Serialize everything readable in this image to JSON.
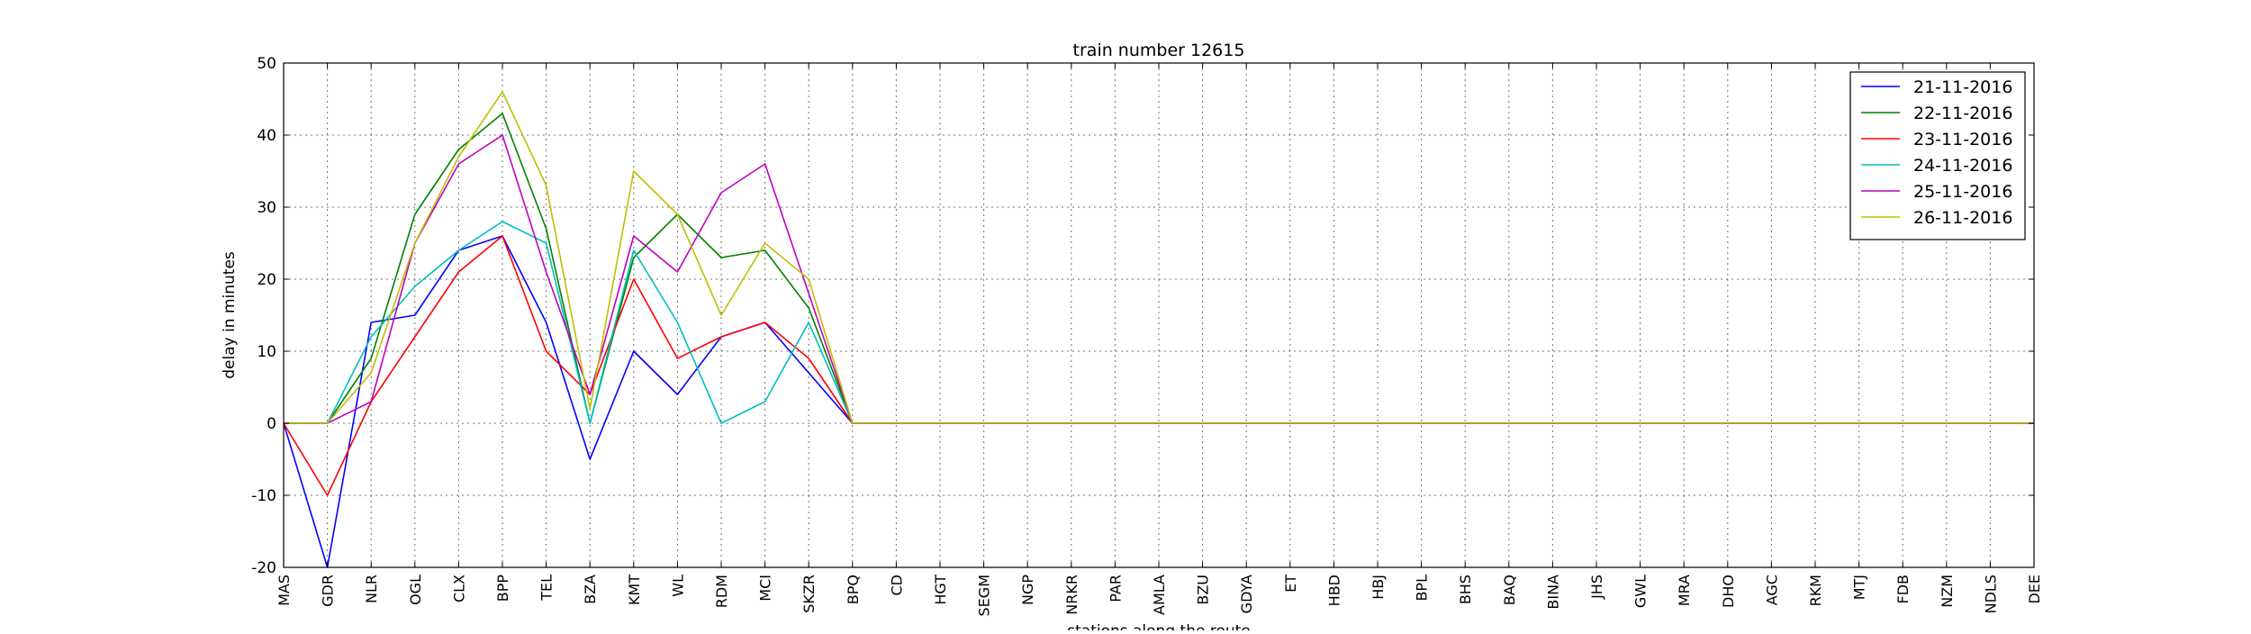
{
  "chart_data": {
    "type": "line",
    "title": "train number 12615",
    "xlabel": "stations along the route",
    "ylabel": "delay in minutes",
    "ylim": [
      -20,
      50
    ],
    "yticks": [
      -20,
      -10,
      0,
      10,
      20,
      30,
      40,
      50
    ],
    "grid": true,
    "legend_position": "top-right",
    "categories": [
      "MAS",
      "GDR",
      "NLR",
      "OGL",
      "CLX",
      "BPP",
      "TEL",
      "BZA",
      "KMT",
      "WL",
      "RDM",
      "MCI",
      "SKZR",
      "BPQ",
      "CD",
      "HGT",
      "SEGM",
      "NGP",
      "NRKR",
      "PAR",
      "AMLA",
      "BZU",
      "GDYA",
      "ET",
      "HBD",
      "HBJ",
      "BPL",
      "BHS",
      "BAQ",
      "BINA",
      "JHS",
      "GWL",
      "MRA",
      "DHO",
      "AGC",
      "RKM",
      "MTJ",
      "FDB",
      "NZM",
      "NDLS",
      "DEE"
    ],
    "series": [
      {
        "name": "21-11-2016",
        "color": "#0000ff",
        "values": [
          0,
          -20,
          14,
          15,
          24,
          26,
          14,
          -5,
          10,
          4,
          12,
          14,
          7,
          0,
          0,
          0,
          0,
          0,
          0,
          0,
          0,
          0,
          0,
          0,
          0,
          0,
          0,
          0,
          0,
          0,
          0,
          0,
          0,
          0,
          0,
          0,
          0,
          0,
          0,
          0,
          0
        ]
      },
      {
        "name": "22-11-2016",
        "color": "#008000",
        "values": [
          0,
          0,
          9,
          29,
          38,
          43,
          27,
          0,
          23,
          29,
          23,
          24,
          16,
          0,
          0,
          0,
          0,
          0,
          0,
          0,
          0,
          0,
          0,
          0,
          0,
          0,
          0,
          0,
          0,
          0,
          0,
          0,
          0,
          0,
          0,
          0,
          0,
          0,
          0,
          0,
          0
        ]
      },
      {
        "name": "23-11-2016",
        "color": "#ff0000",
        "values": [
          0,
          -10,
          3,
          12,
          21,
          26,
          10,
          4,
          20,
          9,
          12,
          14,
          9,
          0,
          0,
          0,
          0,
          0,
          0,
          0,
          0,
          0,
          0,
          0,
          0,
          0,
          0,
          0,
          0,
          0,
          0,
          0,
          0,
          0,
          0,
          0,
          0,
          0,
          0,
          0,
          0
        ]
      },
      {
        "name": "24-11-2016",
        "color": "#00bfbf",
        "values": [
          0,
          0,
          12,
          19,
          24,
          28,
          25,
          0,
          24,
          14,
          0,
          3,
          14,
          0,
          0,
          0,
          0,
          0,
          0,
          0,
          0,
          0,
          0,
          0,
          0,
          0,
          0,
          0,
          0,
          0,
          0,
          0,
          0,
          0,
          0,
          0,
          0,
          0,
          0,
          0,
          0
        ]
      },
      {
        "name": "25-11-2016",
        "color": "#bf00bf",
        "values": [
          0,
          0,
          3,
          25,
          36,
          40,
          21,
          4,
          26,
          21,
          32,
          36,
          18,
          0,
          0,
          0,
          0,
          0,
          0,
          0,
          0,
          0,
          0,
          0,
          0,
          0,
          0,
          0,
          0,
          0,
          0,
          0,
          0,
          0,
          0,
          0,
          0,
          0,
          0,
          0,
          0
        ]
      },
      {
        "name": "26-11-2016",
        "color": "#bfbf00",
        "values": [
          0,
          0,
          7,
          25,
          37,
          46,
          33,
          2,
          35,
          29,
          15,
          25,
          20,
          0,
          0,
          0,
          0,
          0,
          0,
          0,
          0,
          0,
          0,
          0,
          0,
          0,
          0,
          0,
          0,
          0,
          0,
          0,
          0,
          0,
          0,
          0,
          0,
          0,
          0,
          0,
          0
        ]
      }
    ]
  }
}
